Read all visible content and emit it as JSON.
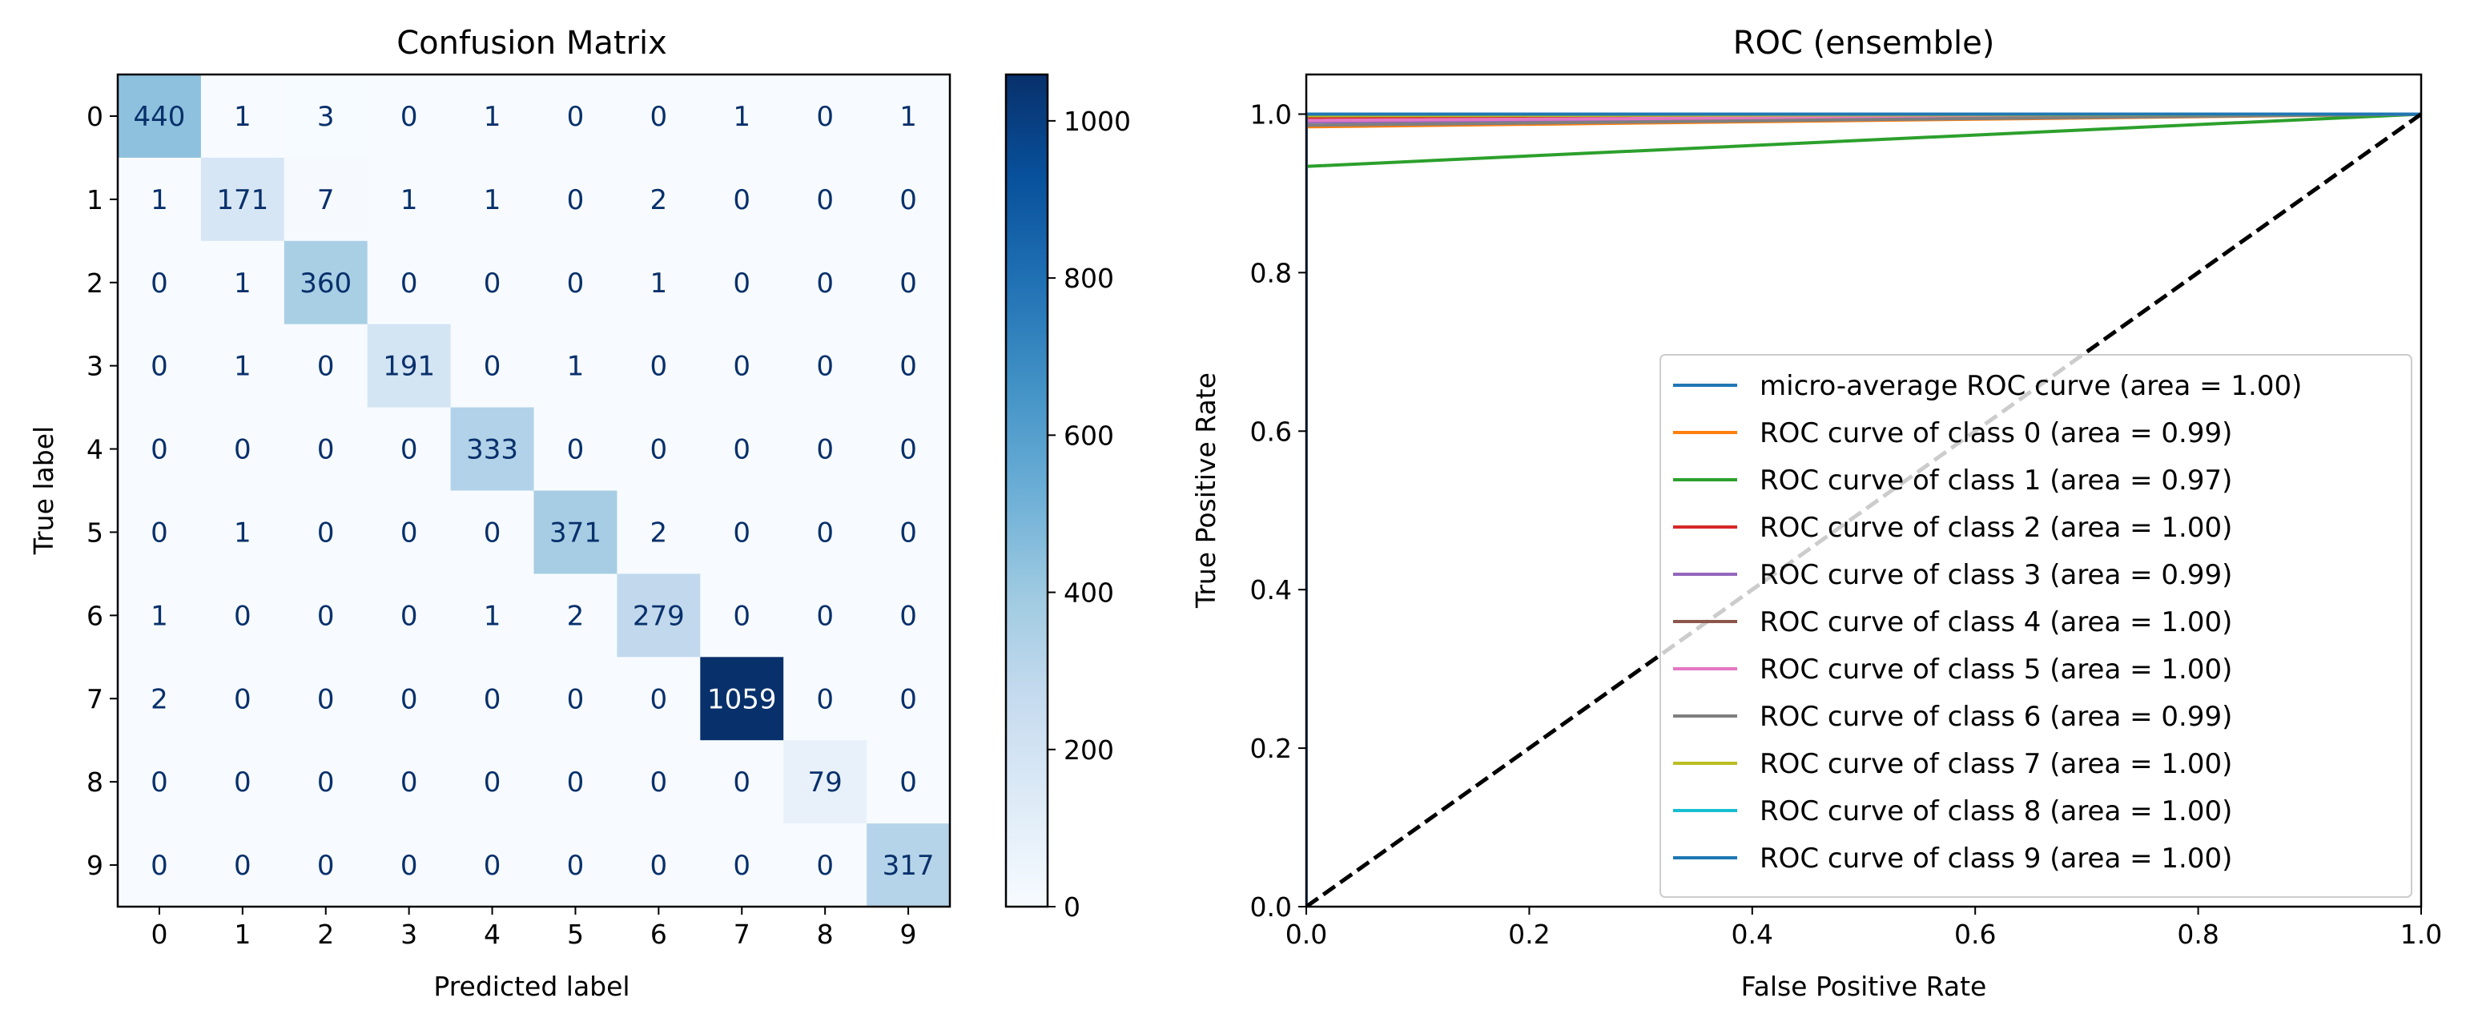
{
  "chart_data": [
    {
      "type": "heatmap",
      "title": "Confusion Matrix",
      "xlabel": "Predicted label",
      "ylabel": "True label",
      "x_categories": [
        "0",
        "1",
        "2",
        "3",
        "4",
        "5",
        "6",
        "7",
        "8",
        "9"
      ],
      "y_categories": [
        "0",
        "1",
        "2",
        "3",
        "4",
        "5",
        "6",
        "7",
        "8",
        "9"
      ],
      "matrix": [
        [
          440,
          1,
          3,
          0,
          1,
          0,
          0,
          1,
          0,
          1
        ],
        [
          1,
          171,
          7,
          1,
          1,
          0,
          2,
          0,
          0,
          0
        ],
        [
          0,
          1,
          360,
          0,
          0,
          0,
          1,
          0,
          0,
          0
        ],
        [
          0,
          1,
          0,
          191,
          0,
          1,
          0,
          0,
          0,
          0
        ],
        [
          0,
          0,
          0,
          0,
          333,
          0,
          0,
          0,
          0,
          0
        ],
        [
          0,
          1,
          0,
          0,
          0,
          371,
          2,
          0,
          0,
          0
        ],
        [
          1,
          0,
          0,
          0,
          1,
          2,
          279,
          0,
          0,
          0
        ],
        [
          2,
          0,
          0,
          0,
          0,
          0,
          0,
          1059,
          0,
          0
        ],
        [
          0,
          0,
          0,
          0,
          0,
          0,
          0,
          0,
          79,
          0
        ],
        [
          0,
          0,
          0,
          0,
          0,
          0,
          0,
          0,
          0,
          317
        ]
      ],
      "colormap": "Blues",
      "colorbar": {
        "min": 0,
        "max": 1059,
        "ticks": [
          0,
          200,
          400,
          600,
          800,
          1000
        ]
      }
    },
    {
      "type": "line",
      "title": "ROC (ensemble)",
      "xlabel": "False Positive Rate",
      "ylabel": "True Positive Rate",
      "xlim": [
        0.0,
        1.0
      ],
      "ylim": [
        0.0,
        1.05
      ],
      "xticks": [
        0.0,
        0.2,
        0.4,
        0.6,
        0.8,
        1.0
      ],
      "yticks": [
        0.0,
        0.2,
        0.4,
        0.6,
        0.8,
        1.0
      ],
      "legend_position": "lower-right",
      "series": [
        {
          "name": "micro-average ROC curve (area = 1.00)",
          "color": "#1f77b4",
          "x": [
            0,
            0,
            1
          ],
          "y": [
            0,
            0.998,
            1
          ]
        },
        {
          "name": "ROC curve of class 0 (area = 0.99)",
          "color": "#ff7f0e",
          "x": [
            0,
            0,
            1
          ],
          "y": [
            0,
            0.984,
            1
          ]
        },
        {
          "name": "ROC curve of class 1 (area = 0.97)",
          "color": "#2ca02c",
          "x": [
            0,
            0,
            1
          ],
          "y": [
            0,
            0.934,
            1
          ]
        },
        {
          "name": "ROC curve of class 2 (area = 1.00)",
          "color": "#d62728",
          "x": [
            0,
            0,
            1
          ],
          "y": [
            0,
            0.994,
            1
          ]
        },
        {
          "name": "ROC curve of class 3 (area = 0.99)",
          "color": "#9467bd",
          "x": [
            0,
            0,
            1
          ],
          "y": [
            0,
            0.99,
            1
          ]
        },
        {
          "name": "ROC curve of class 4 (area = 1.00)",
          "color": "#8c564b",
          "x": [
            0,
            0,
            1
          ],
          "y": [
            0,
            1.0,
            1
          ]
        },
        {
          "name": "ROC curve of class 5 (area = 1.00)",
          "color": "#e377c2",
          "x": [
            0,
            0,
            1
          ],
          "y": [
            0,
            0.992,
            1
          ]
        },
        {
          "name": "ROC curve of class 6 (area = 0.99)",
          "color": "#7f7f7f",
          "x": [
            0,
            0,
            1
          ],
          "y": [
            0,
            0.986,
            1
          ]
        },
        {
          "name": "ROC curve of class 7 (area = 1.00)",
          "color": "#bcbd22",
          "x": [
            0,
            0,
            1
          ],
          "y": [
            0,
            0.998,
            1
          ]
        },
        {
          "name": "ROC curve of class 8 (area = 1.00)",
          "color": "#17becf",
          "x": [
            0,
            0,
            1
          ],
          "y": [
            0,
            1.0,
            1
          ]
        },
        {
          "name": "ROC curve of class 9 (area = 1.00)",
          "color": "#1f77b4",
          "x": [
            0,
            0,
            1
          ],
          "y": [
            0,
            1.0,
            1
          ]
        }
      ],
      "reference_line": {
        "x": [
          0,
          1
        ],
        "y": [
          0,
          1
        ],
        "style": "dashed",
        "color": "#000000"
      }
    }
  ]
}
